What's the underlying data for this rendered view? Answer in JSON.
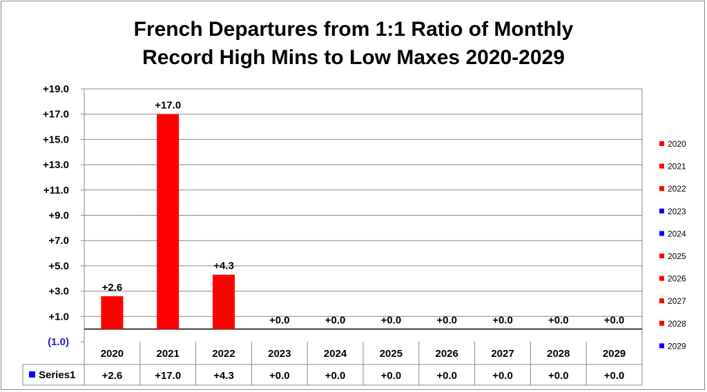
{
  "chart_data": {
    "type": "bar",
    "title_line1": "French Departures from 1:1 Ratio of Monthly",
    "title_line2": "Record High Mins to Low Maxes 2020-2029",
    "categories": [
      "2020",
      "2021",
      "2022",
      "2023",
      "2024",
      "2025",
      "2026",
      "2027",
      "2028",
      "2029"
    ],
    "series": [
      {
        "name": "Series1",
        "values": [
          2.6,
          17.0,
          4.3,
          0.0,
          0.0,
          0.0,
          0.0,
          0.0,
          0.0,
          0.0
        ],
        "labels": [
          "+2.6",
          "+17.0",
          "+4.3",
          "+0.0",
          "+0.0",
          "+0.0",
          "+0.0",
          "+0.0",
          "+0.0",
          "+0.0"
        ]
      }
    ],
    "yticks": [
      19,
      17,
      15,
      13,
      11,
      9,
      7,
      5,
      3,
      1,
      -1
    ],
    "ytick_labels": [
      "+19.0",
      "+17.0",
      "+15.0",
      "+13.0",
      "+11.0",
      "+9.0",
      "+7.0",
      "+5.0",
      "+3.0",
      "+1.0",
      "(1.0)"
    ],
    "ylim": [
      -1,
      19
    ],
    "grid": true,
    "bar_colors": [
      "#ff0000",
      "#ff0000",
      "#ff0000",
      "#0000ff",
      "#0000ff",
      "#ff0000",
      "#ff0000",
      "#ff0000",
      "#ff0000",
      "#0000ff"
    ],
    "series_key_color": "#0000ff",
    "negative_tick_color": "#1f1fd0",
    "legend_position": "right",
    "data_table": true
  }
}
